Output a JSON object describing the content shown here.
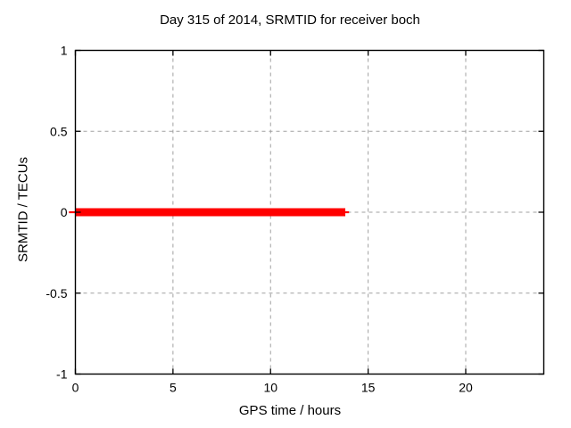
{
  "chart_data": {
    "type": "line",
    "title": "Day 315 of 2014, SRMTID for receiver boch",
    "xlabel": "GPS time / hours",
    "ylabel": "SRMTID / TECUs",
    "xlim": [
      0,
      24
    ],
    "ylim": [
      -1,
      1
    ],
    "xticks": [
      0,
      5,
      10,
      15,
      20
    ],
    "xtick_labels": [
      "0",
      "5",
      "10",
      "15",
      "20"
    ],
    "yticks": [
      -1,
      -0.5,
      0,
      0.5,
      1
    ],
    "ytick_labels": [
      "-1",
      "-0.5",
      "0",
      "0.5",
      "1"
    ],
    "grid": true,
    "grid_style": "dashed",
    "legend": "none",
    "series": [
      {
        "name": "SRMTID",
        "color": "#ff0000",
        "description": "flat line at zero TECUs from 0 h to about 13.8 h GPS time",
        "y_value": 0,
        "x_start": 0,
        "x_end": 13.8,
        "segments": [
          {
            "x1": 0,
            "x2": 13.83,
            "y": 0,
            "stroke_px": 9
          },
          {
            "x1": -0.33,
            "x2": 0.05,
            "y": 0,
            "stroke_px": 2.2
          },
          {
            "x1": 13.83,
            "x2": 14.02,
            "y": 0,
            "stroke_px": 2.2
          }
        ]
      }
    ]
  },
  "colors": {
    "background": "#ffffff",
    "axis": "#000000",
    "grid": "#a0a0a0",
    "text": "#000000",
    "series": "#ff0000"
  }
}
